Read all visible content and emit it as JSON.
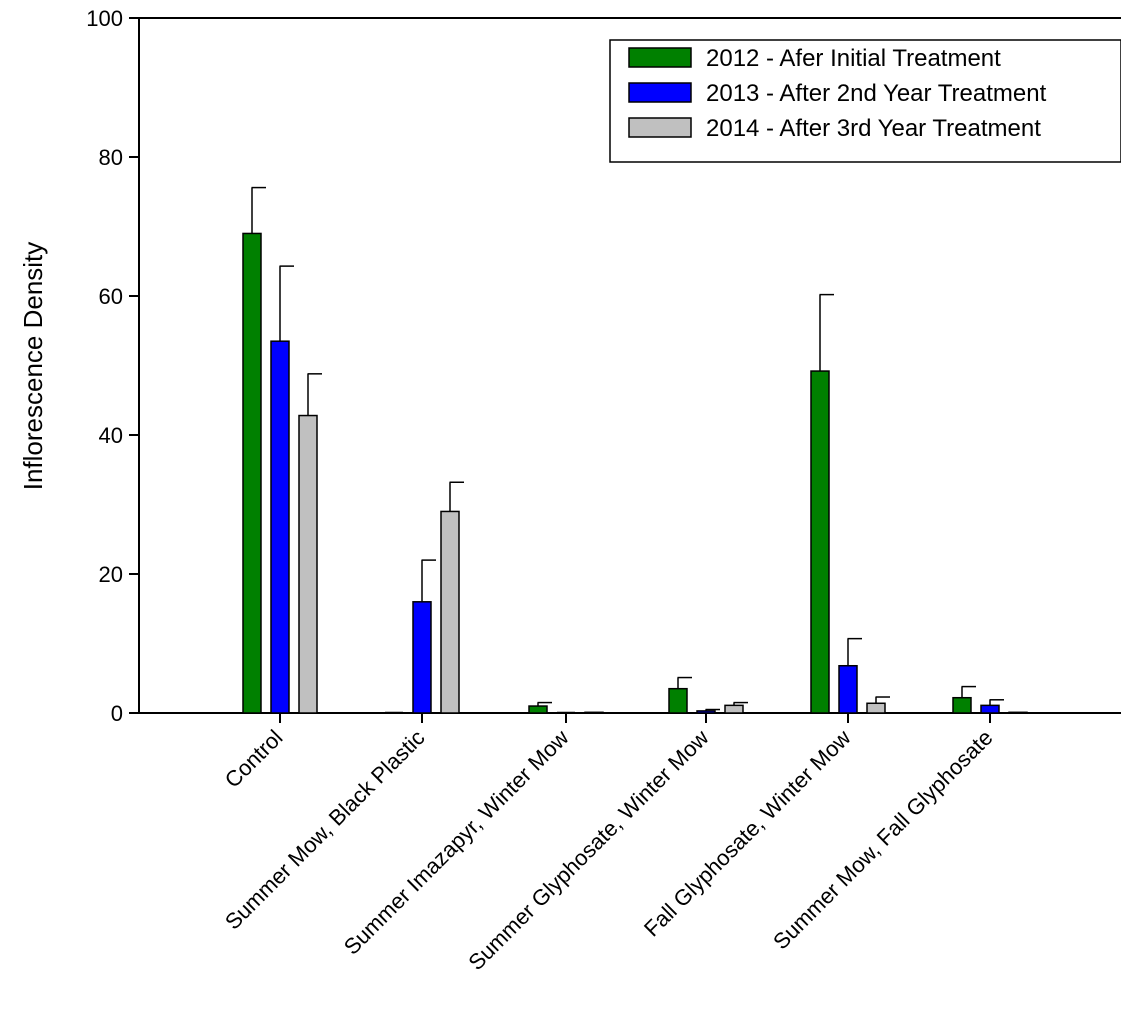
{
  "chart_data": {
    "type": "bar",
    "title": "",
    "xlabel": "",
    "ylabel": "Inflorescence Density",
    "ylim": [
      0,
      100
    ],
    "yticks": [
      0,
      20,
      40,
      60,
      80,
      100
    ],
    "categories": [
      "Control",
      "Summer Mow, Black Plastic",
      "Summer Imazapyr, Winter Mow",
      "Summer Glyphosate, Winter Mow",
      "Fall Glyphosate, Winter Mow",
      "Summer Mow, Fall Glyphosate"
    ],
    "series": [
      {
        "name": "2012 - Afer Initial Treatment",
        "color": "#008000",
        "values": [
          69.0,
          0.0,
          1.0,
          3.5,
          49.2,
          2.2
        ],
        "errors": [
          6.6,
          0.0,
          0.5,
          1.6,
          11.0,
          1.6
        ]
      },
      {
        "name": "2013 - After 2nd Year Treatment",
        "color": "#0000ff",
        "values": [
          53.5,
          16.0,
          0.0,
          0.3,
          6.8,
          1.1
        ],
        "errors": [
          10.8,
          6.0,
          0.0,
          0.2,
          3.9,
          0.8
        ]
      },
      {
        "name": "2014 - After 3rd Year Treatment",
        "color": "#c0c0c0",
        "values": [
          42.8,
          29.0,
          0.1,
          1.1,
          1.4,
          0.1
        ],
        "errors": [
          6.0,
          4.2,
          0.0,
          0.4,
          0.9,
          0.0
        ]
      }
    ],
    "legend": "top-right",
    "grid": false
  }
}
